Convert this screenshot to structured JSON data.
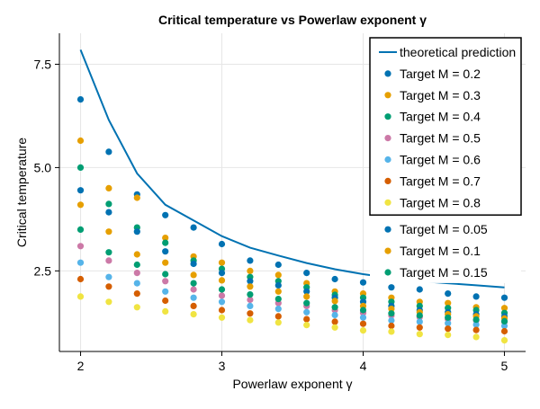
{
  "chart_data": {
    "type": "scatter",
    "title": "Critical temperature vs Powerlaw exponent γ",
    "xlabel": "Powerlaw exponent γ",
    "ylabel": "Critical temperature",
    "xlim": [
      1.85,
      5.15
    ],
    "ylim": [
      0.55,
      8.25
    ],
    "xticks": [
      2,
      3,
      4,
      5
    ],
    "xtick_labels": [
      "2",
      "3",
      "4",
      "5"
    ],
    "yticks": [
      2.5,
      5.0,
      7.5
    ],
    "ytick_labels": [
      "2.5",
      "5.0",
      "7.5"
    ],
    "grid": true,
    "legend_position": "top-right",
    "x": [
      2.0,
      2.2,
      2.4,
      2.6,
      2.8,
      3.0,
      3.2,
      3.4,
      3.6,
      3.8,
      4.0,
      4.2,
      4.4,
      4.6,
      4.8,
      5.0
    ],
    "line": {
      "name": "theoretical prediction",
      "color": "#0072B2",
      "values": [
        7.85,
        6.15,
        4.86,
        4.1,
        3.72,
        3.34,
        3.06,
        2.87,
        2.69,
        2.54,
        2.42,
        2.33,
        2.25,
        2.2,
        2.15,
        2.1
      ]
    },
    "series": [
      {
        "name": "Target M = 0.2",
        "color": "#0072B2",
        "values": [
          6.65,
          5.38,
          4.35,
          3.85,
          3.55,
          3.15,
          2.75,
          2.65,
          2.45,
          2.3,
          2.22,
          2.1,
          2.05,
          1.95,
          1.88,
          1.85
        ]
      },
      {
        "name": "Target M = 0.3",
        "color": "#E69F00",
        "values": [
          5.65,
          4.5,
          4.27,
          3.3,
          2.85,
          2.7,
          2.5,
          2.4,
          2.2,
          2.0,
          1.95,
          1.85,
          1.75,
          1.72,
          1.62,
          1.6
        ]
      },
      {
        "name": "Target M = 0.4",
        "color": "#009E73",
        "values": [
          5.0,
          4.12,
          3.55,
          3.18,
          2.75,
          2.55,
          2.35,
          2.25,
          2.1,
          1.92,
          1.85,
          1.75,
          1.65,
          1.6,
          1.55,
          1.48
        ]
      },
      {
        "name": "Target M = 0.5",
        "color": "#CC79A7",
        "values": [
          3.1,
          2.75,
          2.45,
          2.25,
          2.05,
          1.9,
          1.8,
          1.72,
          1.65,
          1.55,
          1.48,
          1.42,
          1.38,
          1.33,
          1.3,
          1.27
        ]
      },
      {
        "name": "Target M = 0.6",
        "color": "#56B4E9",
        "values": [
          2.7,
          2.35,
          2.2,
          2.0,
          1.85,
          1.75,
          1.65,
          1.58,
          1.5,
          1.43,
          1.37,
          1.3,
          1.27,
          1.23,
          1.2,
          1.17
        ]
      },
      {
        "name": "Target M = 0.7",
        "color": "#D55E00",
        "values": [
          2.3,
          2.12,
          1.95,
          1.78,
          1.65,
          1.55,
          1.47,
          1.4,
          1.33,
          1.27,
          1.22,
          1.17,
          1.13,
          1.1,
          1.07,
          1.04
        ]
      },
      {
        "name": "Target M = 0.8",
        "color": "#F0E442",
        "values": [
          1.88,
          1.75,
          1.62,
          1.52,
          1.45,
          1.37,
          1.31,
          1.25,
          1.19,
          1.13,
          1.06,
          1.03,
          0.97,
          0.95,
          0.9,
          0.82
        ]
      },
      {
        "name": "Target M = 0.05",
        "color": "#0072B2",
        "values": [
          4.45,
          3.92,
          3.45,
          2.97,
          2.67,
          2.45,
          2.25,
          2.15,
          2.0,
          1.85,
          1.75,
          1.65,
          1.55,
          1.5,
          1.45,
          1.4
        ]
      },
      {
        "name": "Target M = 0.1",
        "color": "#E69F00",
        "values": [
          4.1,
          3.45,
          2.9,
          2.7,
          2.4,
          2.27,
          2.12,
          2.0,
          1.88,
          1.77,
          1.65,
          1.58,
          1.5,
          1.45,
          1.4,
          1.35
        ]
      },
      {
        "name": "Target M = 0.15",
        "color": "#009E73",
        "values": [
          3.5,
          2.95,
          2.65,
          2.42,
          2.2,
          2.05,
          1.93,
          1.82,
          1.72,
          1.62,
          1.55,
          1.47,
          1.42,
          1.37,
          1.32,
          1.28
        ]
      }
    ],
    "legend": {
      "boxed_entries": [
        "theoretical prediction",
        "Target M = 0.2",
        "Target M = 0.3",
        "Target M = 0.4",
        "Target M = 0.5",
        "Target M = 0.6",
        "Target M = 0.7",
        "Target M = 0.8"
      ],
      "extra_entries": [
        "Target M = 0.05",
        "Target M = 0.1",
        "Target M = 0.15"
      ]
    }
  }
}
